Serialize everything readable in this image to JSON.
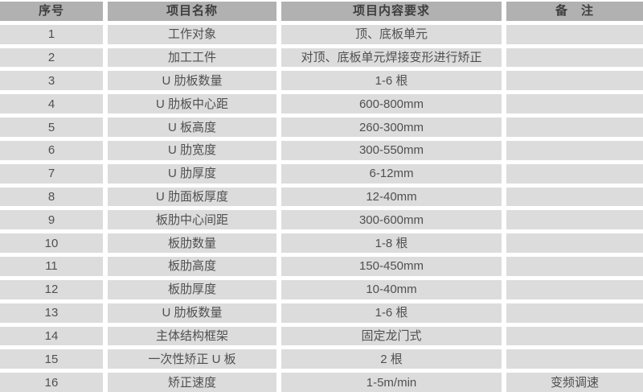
{
  "colors": {
    "header_bg": "#b1b1b1",
    "row_bg": "#dcdcdc",
    "header_text": "#3e3e40",
    "row_text": "#505052",
    "gap": "#ffffff"
  },
  "table": {
    "headers": [
      "序号",
      "项目名称",
      "项目内容要求",
      "备　注"
    ],
    "rows": [
      {
        "no": "1",
        "name": "工作对象",
        "requirement": "顶、底板单元",
        "remark": ""
      },
      {
        "no": "2",
        "name": "加工工件",
        "requirement": "对顶、底板单元焊接变形进行矫正",
        "remark": ""
      },
      {
        "no": "3",
        "name": "U 肋板数量",
        "requirement": "1-6 根",
        "remark": ""
      },
      {
        "no": "4",
        "name": "U 肋板中心距",
        "requirement": "600-800mm",
        "remark": ""
      },
      {
        "no": "5",
        "name": "U 板高度",
        "requirement": "260-300mm",
        "remark": ""
      },
      {
        "no": "6",
        "name": "U 肋宽度",
        "requirement": "300-550mm",
        "remark": ""
      },
      {
        "no": "7",
        "name": "U 肋厚度",
        "requirement": "6-12mm",
        "remark": ""
      },
      {
        "no": "8",
        "name": "U 肋面板厚度",
        "requirement": "12-40mm",
        "remark": ""
      },
      {
        "no": "9",
        "name": "板肋中心间距",
        "requirement": "300-600mm",
        "remark": ""
      },
      {
        "no": "10",
        "name": "板肋数量",
        "requirement": "1-8 根",
        "remark": ""
      },
      {
        "no": "11",
        "name": "板肋高度",
        "requirement": "150-450mm",
        "remark": ""
      },
      {
        "no": "12",
        "name": "板肋厚度",
        "requirement": "10-40mm",
        "remark": ""
      },
      {
        "no": "13",
        "name": "U 肋板数量",
        "requirement": "1-6 根",
        "remark": ""
      },
      {
        "no": "14",
        "name": "主体结构框架",
        "requirement": "固定龙门式",
        "remark": ""
      },
      {
        "no": "15",
        "name": "一次性矫正 U 板",
        "requirement": "2 根",
        "remark": ""
      },
      {
        "no": "16",
        "name": "矫正速度",
        "requirement": "1-5m/min",
        "remark": "变频调速"
      }
    ]
  }
}
